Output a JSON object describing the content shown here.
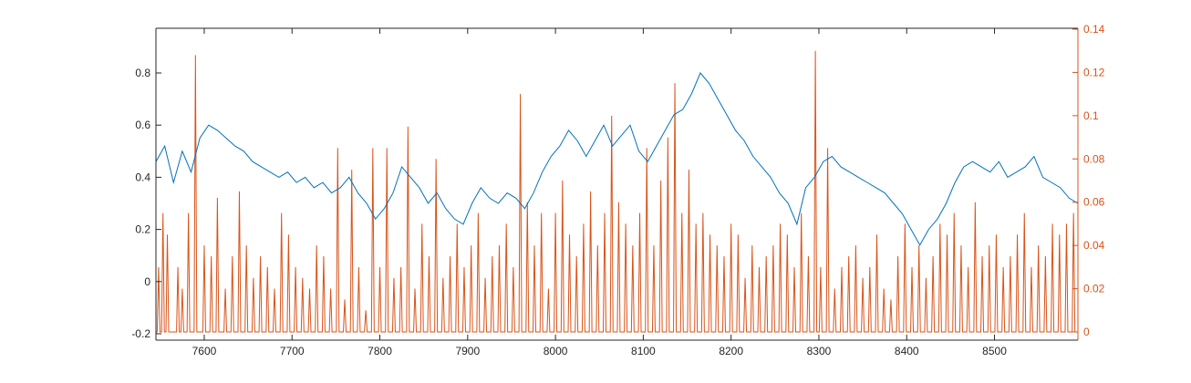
{
  "chart_data": {
    "type": "line",
    "title": "",
    "xlabel": "",
    "ylabel_left": "",
    "ylabel_right": "",
    "grid": false,
    "legend": false,
    "xlim": [
      7545,
      7595
    ],
    "xlim_note": "",
    "x_range": [
      7545,
      8595
    ],
    "y_left_range": [
      -0.2,
      0.9
    ],
    "y_right_range": [
      0,
      0.14
    ],
    "x_ticks": [
      7600,
      7700,
      7800,
      7900,
      8000,
      8100,
      8200,
      8300,
      8400,
      8500
    ],
    "x_tick_labels": [
      "7600",
      "7700",
      "7800",
      "7900",
      "8000",
      "8100",
      "8200",
      "8300",
      "8400",
      "8500"
    ],
    "y_left_ticks": [
      -0.2,
      0,
      0.2,
      0.4,
      0.6,
      0.8
    ],
    "y_left_tick_labels": [
      "-0.2",
      "0",
      "0.2",
      "0.4",
      "0.6",
      "0.8"
    ],
    "y_right_ticks": [
      0,
      0.02,
      0.04,
      0.06,
      0.08,
      0.1,
      0.12,
      0.14
    ],
    "y_right_tick_labels": [
      "0",
      "0.02",
      "0.04",
      "0.06",
      "0.08",
      "0.1",
      "0.12",
      "0.14"
    ],
    "colors": {
      "left": "#0072BD",
      "right": "#D95319",
      "axis": "#262626"
    },
    "series": [
      {
        "axis": "left",
        "color": "#0072BD",
        "x": [
          7545,
          7555,
          7565,
          7575,
          7585,
          7595,
          7605,
          7615,
          7625,
          7635,
          7645,
          7655,
          7665,
          7675,
          7685,
          7695,
          7705,
          7715,
          7725,
          7735,
          7745,
          7755,
          7765,
          7775,
          7785,
          7795,
          7805,
          7815,
          7825,
          7835,
          7845,
          7855,
          7865,
          7875,
          7885,
          7895,
          7905,
          7915,
          7925,
          7935,
          7945,
          7955,
          7965,
          7975,
          7985,
          7995,
          8005,
          8015,
          8025,
          8035,
          8045,
          8055,
          8065,
          8075,
          8085,
          8095,
          8105,
          8115,
          8125,
          8135,
          8145,
          8155,
          8165,
          8175,
          8185,
          8195,
          8205,
          8215,
          8225,
          8235,
          8245,
          8255,
          8265,
          8275,
          8285,
          8295,
          8305,
          8315,
          8325,
          8335,
          8345,
          8355,
          8365,
          8375,
          8385,
          8395,
          8405,
          8415,
          8425,
          8435,
          8445,
          8455,
          8465,
          8475,
          8485,
          8495,
          8505,
          8515,
          8525,
          8535,
          8545,
          8555,
          8565,
          8575,
          8585,
          8595
        ],
        "y": [
          0.46,
          0.52,
          0.38,
          0.5,
          0.42,
          0.55,
          0.6,
          0.58,
          0.55,
          0.52,
          0.5,
          0.46,
          0.44,
          0.42,
          0.4,
          0.42,
          0.38,
          0.4,
          0.36,
          0.38,
          0.34,
          0.36,
          0.4,
          0.34,
          0.3,
          0.24,
          0.28,
          0.34,
          0.44,
          0.4,
          0.36,
          0.3,
          0.34,
          0.28,
          0.24,
          0.22,
          0.3,
          0.36,
          0.32,
          0.3,
          0.34,
          0.32,
          0.28,
          0.34,
          0.42,
          0.48,
          0.52,
          0.58,
          0.54,
          0.48,
          0.54,
          0.6,
          0.52,
          0.56,
          0.6,
          0.5,
          0.46,
          0.52,
          0.58,
          0.64,
          0.66,
          0.72,
          0.8,
          0.76,
          0.7,
          0.64,
          0.58,
          0.54,
          0.48,
          0.44,
          0.4,
          0.34,
          0.3,
          0.22,
          0.36,
          0.4,
          0.46,
          0.48,
          0.44,
          0.42,
          0.4,
          0.38,
          0.36,
          0.34,
          0.3,
          0.26,
          0.2,
          0.14,
          0.2,
          0.24,
          0.3,
          0.38,
          0.44,
          0.46,
          0.44,
          0.42,
          0.46,
          0.4,
          0.42,
          0.44,
          0.48,
          0.4,
          0.38,
          0.36,
          0.32,
          0.3
        ]
      },
      {
        "axis": "right",
        "color": "#D95319",
        "x": [
          7548,
          7553,
          7558,
          7570,
          7575,
          7582,
          7590,
          7600,
          7608,
          7615,
          7624,
          7632,
          7640,
          7648,
          7656,
          7664,
          7672,
          7680,
          7688,
          7696,
          7704,
          7712,
          7720,
          7728,
          7736,
          7744,
          7752,
          7760,
          7768,
          7776,
          7784,
          7792,
          7800,
          7808,
          7816,
          7824,
          7832,
          7840,
          7848,
          7856,
          7864,
          7872,
          7880,
          7888,
          7896,
          7904,
          7912,
          7920,
          7928,
          7936,
          7944,
          7952,
          7960,
          7968,
          7976,
          7984,
          7992,
          8000,
          8008,
          8016,
          8024,
          8032,
          8040,
          8048,
          8056,
          8064,
          8072,
          8080,
          8088,
          8096,
          8104,
          8112,
          8120,
          8128,
          8136,
          8144,
          8152,
          8160,
          8168,
          8176,
          8184,
          8192,
          8200,
          8208,
          8216,
          8224,
          8232,
          8240,
          8248,
          8256,
          8264,
          8272,
          8280,
          8288,
          8296,
          8302,
          8310,
          8318,
          8326,
          8334,
          8342,
          8350,
          8358,
          8366,
          8374,
          8382,
          8390,
          8398,
          8406,
          8414,
          8422,
          8430,
          8438,
          8446,
          8454,
          8462,
          8470,
          8478,
          8486,
          8494,
          8502,
          8510,
          8518,
          8526,
          8534,
          8542,
          8550,
          8558,
          8566,
          8574,
          8582,
          8590
        ],
        "y": [
          0.03,
          0.055,
          0.045,
          0.03,
          0.02,
          0.055,
          0.128,
          0.04,
          0.035,
          0.062,
          0.02,
          0.035,
          0.065,
          0.04,
          0.025,
          0.035,
          0.03,
          0.02,
          0.055,
          0.045,
          0.03,
          0.025,
          0.02,
          0.04,
          0.035,
          0.02,
          0.085,
          0.015,
          0.075,
          0.03,
          0.01,
          0.085,
          0.03,
          0.085,
          0.025,
          0.03,
          0.095,
          0.02,
          0.05,
          0.035,
          0.08,
          0.025,
          0.035,
          0.05,
          0.03,
          0.04,
          0.055,
          0.025,
          0.035,
          0.04,
          0.05,
          0.03,
          0.11,
          0.06,
          0.04,
          0.055,
          0.02,
          0.055,
          0.07,
          0.045,
          0.035,
          0.05,
          0.065,
          0.04,
          0.055,
          0.1,
          0.06,
          0.05,
          0.04,
          0.055,
          0.085,
          0.04,
          0.07,
          0.09,
          0.115,
          0.055,
          0.075,
          0.05,
          0.055,
          0.045,
          0.04,
          0.035,
          0.05,
          0.045,
          0.025,
          0.04,
          0.03,
          0.035,
          0.04,
          0.05,
          0.045,
          0.03,
          0.055,
          0.035,
          0.13,
          0.03,
          0.085,
          0.02,
          0.03,
          0.035,
          0.04,
          0.025,
          0.03,
          0.045,
          0.02,
          0.015,
          0.035,
          0.05,
          0.03,
          0.04,
          0.025,
          0.035,
          0.05,
          0.045,
          0.055,
          0.04,
          0.03,
          0.06,
          0.035,
          0.04,
          0.045,
          0.03,
          0.035,
          0.045,
          0.055,
          0.03,
          0.04,
          0.035,
          0.05,
          0.045,
          0.05,
          0.055
        ]
      }
    ]
  }
}
